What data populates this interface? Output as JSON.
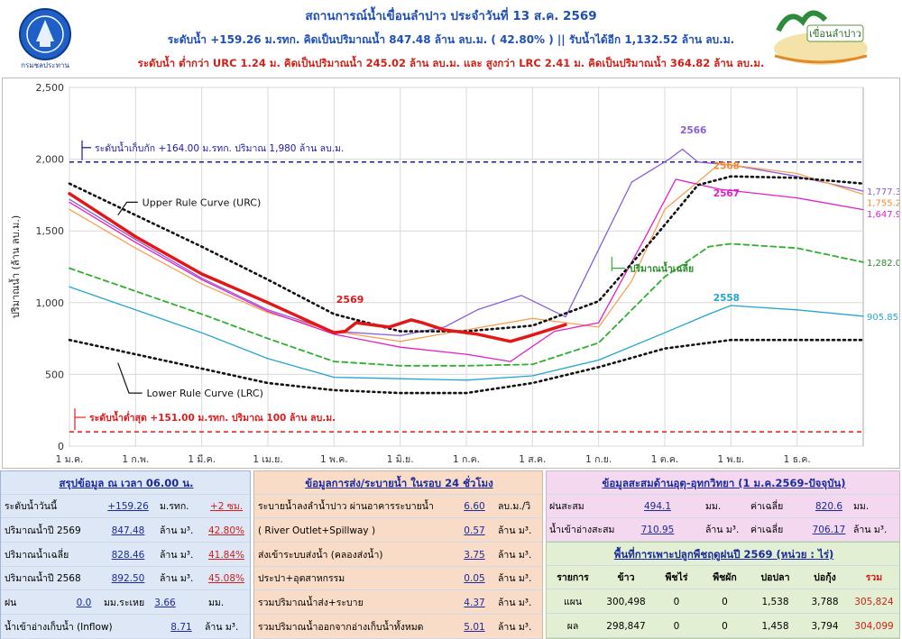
{
  "header": {
    "title": "สถานการณ์น้ำเขื่อนลำปาว ประจำวันที่ 13 ส.ค. 2569",
    "line2": "ระดับน้ำ +159.26 ม.รทก.  คิดเป็นปริมาณน้ำ 847.48 ล้าน ลบ.ม. ( 42.80% )  || รับน้ำได้อีก 1,132.52 ล้าน ลบ.ม.",
    "line3": "ระดับน้ำ ต่ำกว่า URC 1.24 ม. คิดเป็นปริมาณน้ำ 245.02 ล้าน ลบ.ม. และ สูงกว่า LRC 2.41 ม. คิดเป็นปริมาณน้ำ 364.82 ล้าน ลบ.ม.",
    "logo_left_caption": "กรมชลประทาน",
    "logo_right_caption": "เขื่อนลำปาว"
  },
  "colors": {
    "title_blue": "#1f4fb5",
    "alert_red": "#d0201a",
    "panel1_bg": "#dde7f5",
    "panel2_bg": "#f9dcc7",
    "panel3_bg": "#f3d8f0",
    "panel4_bg": "#e3efd3"
  },
  "chart_data": {
    "type": "line",
    "ylabel": "ปริมาณน้ำ (ล้าน ลบ.ม.)",
    "ylim": [
      0,
      2500
    ],
    "yticks": [
      "0",
      "500",
      "1,000",
      "1,500",
      "2,000",
      "2,500"
    ],
    "xticks": [
      "1 ม.ค.",
      "1 ก.พ.",
      "1 มี.ค.",
      "1 เม.ย.",
      "1 พ.ค.",
      "1 มิ.ย.",
      "1 ก.ค.",
      "1 ส.ค.",
      "1 ก.ย.",
      "1 ต.ค.",
      "1 พ.ย.",
      "1 ธ.ค."
    ],
    "grid": true,
    "reference_lines": [
      {
        "label": "ระดับน้ำเก็บกัก +164.00 ม.รทก. ปริมาณ 1,980 ล้าน ลบ.ม.",
        "value": 1980,
        "color": "#1a1aa8"
      },
      {
        "label": "ระดับน้ำต่ำสุด +151.00 ม.รทก. ปริมาณ 100 ล้าน ลบ.ม.",
        "value": 100,
        "color": "#e01a1a"
      }
    ],
    "annotations": [
      "Upper Rule Curve (URC)",
      "Lower Rule Curve (LRC)",
      "ปริมาณน้ำเฉลี่ย",
      "2569",
      "2566",
      "2568",
      "2567",
      "2558"
    ],
    "end_labels": [
      "1,777.39",
      "1,755.20",
      "1,647.93",
      "1,282.06",
      "905.85"
    ],
    "series": [
      {
        "name": "Upper Rule Curve (URC)",
        "color": "#111111",
        "style": "dotted",
        "x": [
          0,
          30,
          60,
          90,
          120,
          150,
          180,
          210,
          240,
          265,
          285,
          300,
          330,
          360
        ],
        "y": [
          1830,
          1610,
          1390,
          1160,
          920,
          800,
          800,
          840,
          1010,
          1450,
          1820,
          1880,
          1870,
          1830
        ]
      },
      {
        "name": "Lower Rule Curve (LRC)",
        "color": "#111111",
        "style": "dotted",
        "x": [
          0,
          30,
          60,
          90,
          120,
          150,
          180,
          210,
          240,
          270,
          300,
          330,
          360
        ],
        "y": [
          740,
          640,
          540,
          440,
          390,
          370,
          370,
          440,
          550,
          680,
          740,
          740,
          740
        ]
      },
      {
        "name": "ปริมาณน้ำเฉลี่ย",
        "color": "#2fae2f",
        "style": "dashed",
        "x": [
          0,
          30,
          60,
          90,
          120,
          150,
          180,
          210,
          240,
          270,
          290,
          300,
          330,
          360
        ],
        "y": [
          1240,
          1080,
          920,
          750,
          590,
          560,
          560,
          570,
          720,
          1180,
          1390,
          1410,
          1380,
          1282.06
        ]
      },
      {
        "name": "2569",
        "color": "#e01818",
        "style": "thick",
        "x": [
          0,
          30,
          60,
          90,
          120,
          125,
          130,
          145,
          155,
          160,
          170,
          185,
          200,
          209,
          225
        ],
        "y": [
          1760,
          1460,
          1200,
          1000,
          790,
          800,
          860,
          830,
          880,
          860,
          810,
          780,
          730,
          770,
          847
        ]
      },
      {
        "name": "2566",
        "color": "#8a5fd6",
        "style": "solid",
        "x": [
          0,
          30,
          60,
          90,
          120,
          150,
          170,
          185,
          205,
          225,
          255,
          272,
          278,
          285,
          300,
          330,
          360
        ],
        "y": [
          1720,
          1440,
          1170,
          950,
          800,
          770,
          830,
          950,
          1050,
          900,
          1840,
          2000,
          2070,
          1980,
          1960,
          1880,
          1777.39
        ]
      },
      {
        "name": "2568",
        "color": "#f6a255",
        "style": "solid",
        "x": [
          0,
          30,
          60,
          90,
          120,
          150,
          180,
          210,
          240,
          255,
          270,
          295,
          330,
          360
        ],
        "y": [
          1650,
          1380,
          1130,
          930,
          800,
          730,
          810,
          890,
          830,
          1150,
          1650,
          1970,
          1900,
          1755.2
        ]
      },
      {
        "name": "2567",
        "color": "#e020c8",
        "style": "solid",
        "x": [
          0,
          30,
          60,
          90,
          120,
          150,
          180,
          200,
          220,
          240,
          262,
          275,
          295,
          330,
          360
        ],
        "y": [
          1700,
          1420,
          1160,
          940,
          780,
          690,
          640,
          590,
          800,
          860,
          1480,
          1860,
          1790,
          1730,
          1647.93
        ]
      },
      {
        "name": "2558",
        "color": "#22a6d0",
        "style": "solid",
        "x": [
          0,
          30,
          60,
          90,
          120,
          150,
          180,
          210,
          240,
          270,
          290,
          300,
          330,
          360
        ],
        "y": [
          1110,
          950,
          790,
          610,
          480,
          470,
          460,
          490,
          600,
          790,
          920,
          980,
          950,
          905.85
        ]
      }
    ]
  },
  "summary": {
    "title": "สรุปข้อมูล ณ เวลา 06.00 น.",
    "rows": [
      {
        "label": "ระดับน้ำวันนี้",
        "value": "+159.26",
        "unit": "ม.รทก.",
        "extra": "+2 ซม."
      },
      {
        "label": "ปริมาณน้ำปี 2569",
        "value": "847.48",
        "unit": "ล้าน ม³.",
        "extra": "42.80%"
      },
      {
        "label": "ปริมาณน้ำเฉลี่ย",
        "value": "828.46",
        "unit": "ล้าน ม³.",
        "extra": "41.84%"
      },
      {
        "label": "ปริมาณน้ำปี 2568",
        "value": "892.50",
        "unit": "ล้าน ม³.",
        "extra": "45.08%"
      },
      {
        "label": "ฝน",
        "value": "0.0",
        "unit": "มม.ระเหย",
        "extra": "3.66",
        "extra_unit": "มม."
      },
      {
        "label": "น้ำเข้าอ่างเก็บน้ำ (Inflow)",
        "value": "8.71",
        "unit": "ล้าน ม³."
      }
    ]
  },
  "discharge": {
    "title": "ข้อมูลการส่ง/ระบายน้ำ ในรอบ 24 ชั่วโมง",
    "rows": [
      {
        "label": "ระบายน้ำลงลำน้ำปาว ผ่านอาคารระบายน้ำ",
        "value": "6.60",
        "unit": "ลบ.ม./วิ"
      },
      {
        "label": "( River Outlet+Spillway )",
        "value": "0.57",
        "unit": "ล้าน ม³."
      },
      {
        "label": "ส่งเข้าระบบส่งน้ำ (คลองส่งน้ำ)",
        "value": "3.75",
        "unit": "ล้าน ม³."
      },
      {
        "label": "ประปา+อุตสาหกรรม",
        "value": "0.05",
        "unit": "ล้าน ม³."
      },
      {
        "label": "รวมปริมาณน้ำส่ง+ระบาย",
        "value": "4.37",
        "unit": "ล้าน ม³."
      },
      {
        "label": "รวมปริมาณน้ำออกจากอ่างเก็บน้ำทั้งหมด",
        "value": "5.01",
        "unit": "ล้าน ม³."
      }
    ]
  },
  "hydro": {
    "title": "ข้อมูลสะสมด้านอุตุ-อุทกวิทยา (1 ม.ค.2569-ปัจจุบัน)",
    "rows": [
      {
        "label": "ฝนสะสม",
        "value": "494.1",
        "unit": "มม.",
        "avg_label": "ค่าเฉลี่ย",
        "avg_value": "820.6",
        "avg_unit": "มม."
      },
      {
        "label": "น้ำเข้าอ่างสะสม",
        "value": "710.95",
        "unit": "ล้าน ม³.",
        "avg_label": "ค่าเฉลี่ย",
        "avg_value": "706.17",
        "avg_unit": "ล้าน ม³."
      }
    ]
  },
  "crops": {
    "title": "พื้นที่การเพาะปลูกพืชฤดูฝนปี 2569 (หน่วย : ไร่)",
    "headers": [
      "รายการ",
      "ข้าว",
      "พืชไร่",
      "พืชผัก",
      "ปอปลา",
      "บ่อกุ้ง",
      "รวม"
    ],
    "rows": [
      [
        "แผน",
        "300,498",
        "0",
        "0",
        "1,538",
        "3,788",
        "305,824"
      ],
      [
        "ผล",
        "298,847",
        "0",
        "0",
        "1,458",
        "3,794",
        "304,099"
      ]
    ]
  }
}
